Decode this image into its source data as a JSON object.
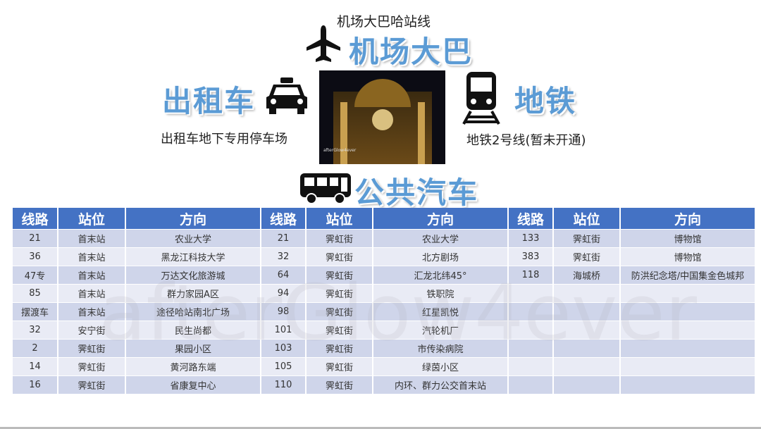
{
  "title": "机场大巴哈站线",
  "airport_bus": "机场大巴",
  "taxi": "出租车",
  "taxi_note": "出租车地下专用停车场",
  "subway": "地铁",
  "subway_note": "地铁2号线(暂未开通)",
  "bus": "公共汽车",
  "photo_watermark": "afterGlow4ever",
  "watermark": "afterGlow4ever",
  "colors": {
    "accent": "#5b9bd5",
    "header": "#4472c4",
    "row_odd": "#cfd5ea",
    "row_even": "#e9ebf5"
  },
  "icons": [
    "airplane-icon",
    "taxi-icon",
    "train-icon",
    "bus-icon"
  ],
  "table": {
    "headers": [
      "线路",
      "站位",
      "方向",
      "线路",
      "站位",
      "方向",
      "线路",
      "站位",
      "方向"
    ],
    "rows": [
      [
        "21",
        "首末站",
        "农业大学",
        "21",
        "霁虹街",
        "农业大学",
        "133",
        "霁虹街",
        "博物馆"
      ],
      [
        "36",
        "首末站",
        "黑龙江科技大学",
        "32",
        "霁虹街",
        "北方剧场",
        "383",
        "霁虹街",
        "博物馆"
      ],
      [
        "47专",
        "首末站",
        "万达文化旅游城",
        "64",
        "霁虹街",
        "汇龙北纬45°",
        "118",
        "海城桥",
        "防洪纪念塔/中国集金色城邦"
      ],
      [
        "85",
        "首末站",
        "群力家园A区",
        "94",
        "霁虹街",
        "铁职院",
        "",
        "",
        ""
      ],
      [
        "摆渡车",
        "首末站",
        "途径哈站南北广场",
        "98",
        "霁虹街",
        "红星凯悦",
        "",
        "",
        ""
      ],
      [
        "32",
        "安宁街",
        "民生尚都",
        "101",
        "霁虹街",
        "汽轮机厂",
        "",
        "",
        ""
      ],
      [
        "2",
        "霁虹街",
        "果园小区",
        "103",
        "霁虹街",
        "市传染病院",
        "",
        "",
        ""
      ],
      [
        "14",
        "霁虹街",
        "黄河路东端",
        "105",
        "霁虹街",
        "绿茵小区",
        "",
        "",
        ""
      ],
      [
        "16",
        "霁虹街",
        "省康复中心",
        "110",
        "霁虹街",
        "内环、群力公交首末站",
        "",
        "",
        ""
      ]
    ]
  }
}
